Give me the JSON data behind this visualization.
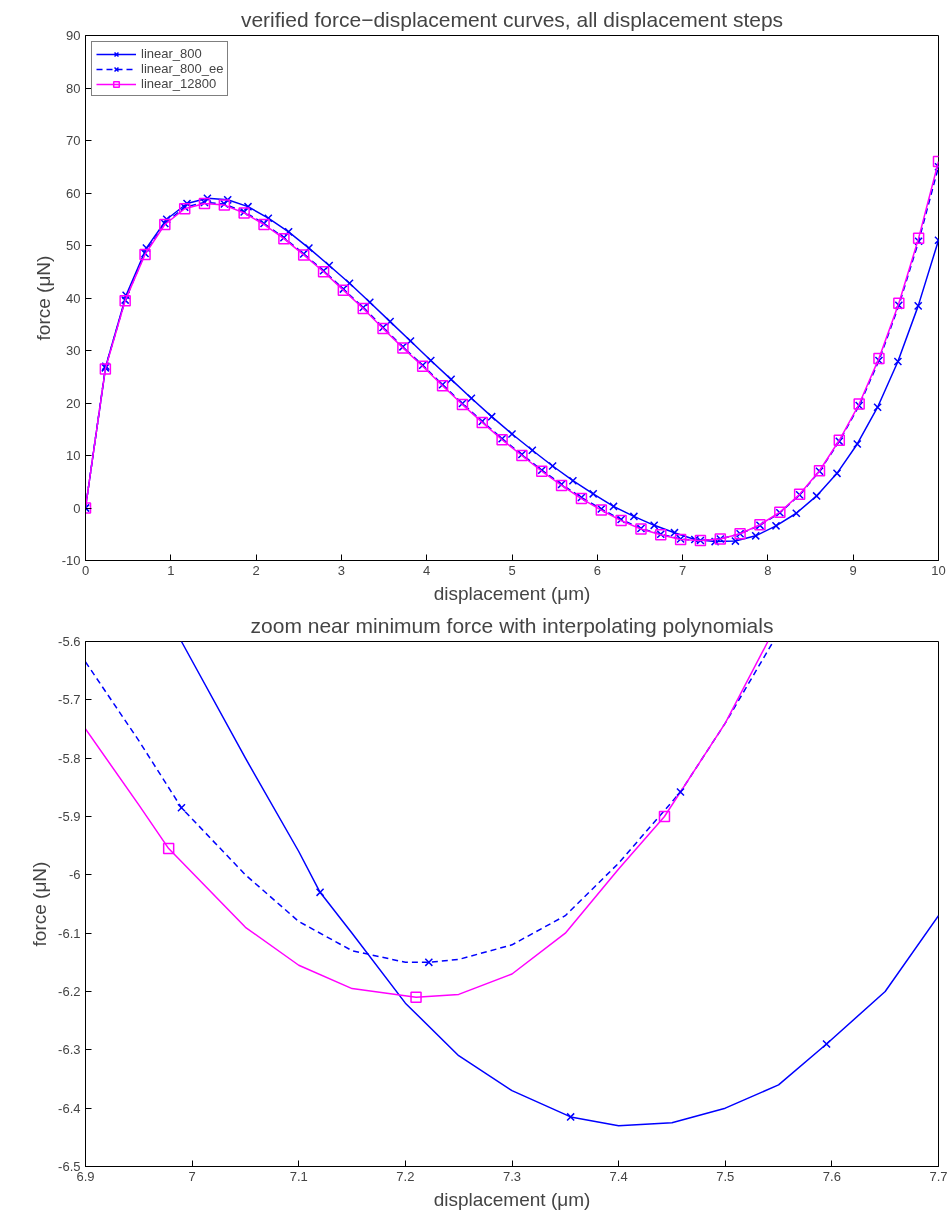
{
  "chart_data": [
    {
      "type": "line",
      "title": "verified force−displacement curves, all displacement steps",
      "xlabel": "displacement (μm)",
      "ylabel": "force (μN)",
      "xlim": [
        0,
        10
      ],
      "ylim": [
        -10,
        90
      ],
      "xticks": [
        0,
        1,
        2,
        3,
        4,
        5,
        6,
        7,
        8,
        9,
        10
      ],
      "yticks": [
        -10,
        0,
        10,
        20,
        30,
        40,
        50,
        60,
        70,
        80,
        90
      ],
      "grid": false,
      "legend": "top left",
      "series": [
        {
          "name": "linear_800",
          "color": "#0000ff",
          "marker": "cross",
          "line_style": "solid",
          "x": [
            0,
            0.238,
            0.476,
            0.714,
            0.952,
            1.19,
            1.429,
            1.667,
            1.905,
            2.143,
            2.381,
            2.619,
            2.857,
            3.095,
            3.333,
            3.571,
            3.81,
            4.048,
            4.286,
            4.524,
            4.762,
            5,
            5.238,
            5.476,
            5.714,
            5.952,
            6.19,
            6.429,
            6.667,
            6.905,
            7.143,
            7.381,
            7.619,
            7.857,
            8.095,
            8.333,
            8.571,
            8.81,
            9.048,
            9.286,
            9.524,
            9.762,
            10
          ],
          "values": [
            0,
            27,
            40.5,
            49.5,
            55,
            58,
            59,
            58.7,
            57.4,
            55.2,
            52.6,
            49.5,
            46.2,
            42.8,
            39.2,
            35.5,
            31.8,
            28.1,
            24.5,
            20.9,
            17.4,
            14.1,
            11,
            8,
            5.2,
            2.7,
            0.3,
            -1.6,
            -3.3,
            -4.7,
            -6.0,
            -6.4,
            -6.3,
            -5.3,
            -3.4,
            -1.0,
            2.3,
            6.6,
            12.2,
            19.2,
            27.9,
            38.5,
            51
          ]
        },
        {
          "name": "linear_800_ee",
          "color": "#0000ff",
          "marker": "cross",
          "line_style": "dashed",
          "x": [
            0,
            0.233,
            0.465,
            0.698,
            0.93,
            1.163,
            1.395,
            1.628,
            1.86,
            2.093,
            2.326,
            2.558,
            2.791,
            3.023,
            3.256,
            3.488,
            3.721,
            3.953,
            4.186,
            4.419,
            4.651,
            4.884,
            5.116,
            5.349,
            5.581,
            5.814,
            6.047,
            6.279,
            6.512,
            6.744,
            6.977,
            7.209,
            7.442,
            7.674,
            7.907,
            8.14,
            8.372,
            8.605,
            8.837,
            9.07,
            9.302,
            9.535,
            9.767,
            10
          ],
          "values": [
            0,
            26.7,
            39.6,
            48.5,
            54.2,
            57.3,
            58.2,
            57.9,
            56.4,
            54.2,
            51.5,
            48.4,
            45.2,
            41.7,
            38.2,
            34.4,
            30.7,
            27.2,
            23.5,
            19.9,
            16.5,
            13.2,
            10.2,
            7.2,
            4.5,
            2.0,
            -0.2,
            -2.2,
            -3.9,
            -5.0,
            -5.9,
            -6.2,
            -5.9,
            -4.9,
            -3.3,
            -0.9,
            2.5,
            7.0,
            12.7,
            19.5,
            28.1,
            38.6,
            50.8,
            65
          ]
        },
        {
          "name": "linear_12800",
          "color": "#ff00ff",
          "marker": "square",
          "line_style": "solid",
          "x": [
            0,
            0.233,
            0.465,
            0.698,
            0.93,
            1.163,
            1.395,
            1.628,
            1.86,
            2.093,
            2.326,
            2.558,
            2.791,
            3.023,
            3.256,
            3.488,
            3.721,
            3.953,
            4.186,
            4.419,
            4.651,
            4.884,
            5.116,
            5.349,
            5.581,
            5.814,
            6.047,
            6.279,
            6.512,
            6.744,
            6.977,
            7.209,
            7.442,
            7.674,
            7.907,
            8.14,
            8.372,
            8.605,
            8.837,
            9.07,
            9.302,
            9.535,
            9.767,
            10
          ],
          "values": [
            0,
            26.5,
            39.5,
            48.3,
            54,
            57,
            58,
            57.7,
            56.2,
            54,
            51.3,
            48.2,
            45,
            41.5,
            38,
            34.2,
            30.5,
            27,
            23.3,
            19.7,
            16.3,
            13,
            10,
            7,
            4.3,
            1.8,
            -0.4,
            -2.4,
            -4,
            -5.1,
            -6.0,
            -6.2,
            -5.9,
            -4.9,
            -3.2,
            -0.8,
            2.6,
            7.1,
            12.9,
            19.8,
            28.5,
            39,
            51.4,
            66
          ]
        }
      ]
    },
    {
      "type": "line",
      "title": "zoom near minimum force with interpolating polynomials",
      "xlabel": "displacement (μm)",
      "ylabel": "force (μN)",
      "xlim": [
        6.9,
        7.7
      ],
      "ylim": [
        -6.5,
        -5.6
      ],
      "xticks": [
        6.9,
        7,
        7.1,
        7.2,
        7.3,
        7.4,
        7.5,
        7.6,
        7.7
      ],
      "yticks": [
        -6.5,
        -6.4,
        -6.3,
        -6.2,
        -6.1,
        -6,
        -5.9,
        -5.8,
        -5.7,
        -5.6
      ],
      "grid": false,
      "series": [
        {
          "color": "#0000ff",
          "marker": "none",
          "line_style": "solid",
          "x": [
            6.99,
            7.05,
            7.1,
            7.12,
            7.15,
            7.2,
            7.25,
            7.3,
            7.355,
            7.4,
            7.45,
            7.5,
            7.55,
            7.595,
            7.65,
            7.7
          ],
          "values": [
            -5.6,
            -5.8,
            -5.96,
            -6.03,
            -6.1,
            -6.22,
            -6.31,
            -6.37,
            -6.415,
            -6.43,
            -6.425,
            -6.4,
            -6.36,
            -6.29,
            -6.2,
            -6.07
          ]
        },
        {
          "color": "#0000ff",
          "marker": "none",
          "line_style": "dashed",
          "x": [
            6.9,
            6.95,
            6.99,
            7.05,
            7.1,
            7.15,
            7.2,
            7.222,
            7.25,
            7.3,
            7.35,
            7.4,
            7.458,
            7.5,
            7.545
          ],
          "values": [
            -5.635,
            -5.77,
            -5.885,
            -6.0,
            -6.08,
            -6.13,
            -6.15,
            -6.15,
            -6.145,
            -6.12,
            -6.07,
            -5.98,
            -5.858,
            -5.74,
            -5.6
          ]
        },
        {
          "color": "#ff00ff",
          "marker": "none",
          "line_style": "solid",
          "x": [
            6.9,
            6.95,
            6.978,
            7.05,
            7.1,
            7.15,
            7.21,
            7.25,
            7.3,
            7.35,
            7.4,
            7.443,
            7.5,
            7.54
          ],
          "values": [
            -5.75,
            -5.88,
            -5.955,
            -6.09,
            -6.155,
            -6.195,
            -6.21,
            -6.205,
            -6.17,
            -6.1,
            -5.99,
            -5.9,
            -5.74,
            -5.6
          ]
        },
        {
          "type": "scatter",
          "color": "#0000ff",
          "marker": "cross",
          "x": [
            7.12,
            7.355,
            7.595
          ],
          "values": [
            -6.03,
            -6.415,
            -6.29
          ]
        },
        {
          "type": "scatter",
          "color": "#0000ff",
          "marker": "cross",
          "x": [
            6.99,
            7.222,
            7.458
          ],
          "values": [
            -5.885,
            -6.15,
            -5.858
          ]
        },
        {
          "type": "scatter",
          "color": "#ff00ff",
          "marker": "square",
          "x": [
            6.978,
            7.21,
            7.443
          ],
          "values": [
            -5.955,
            -6.21,
            -5.9
          ]
        }
      ]
    }
  ]
}
